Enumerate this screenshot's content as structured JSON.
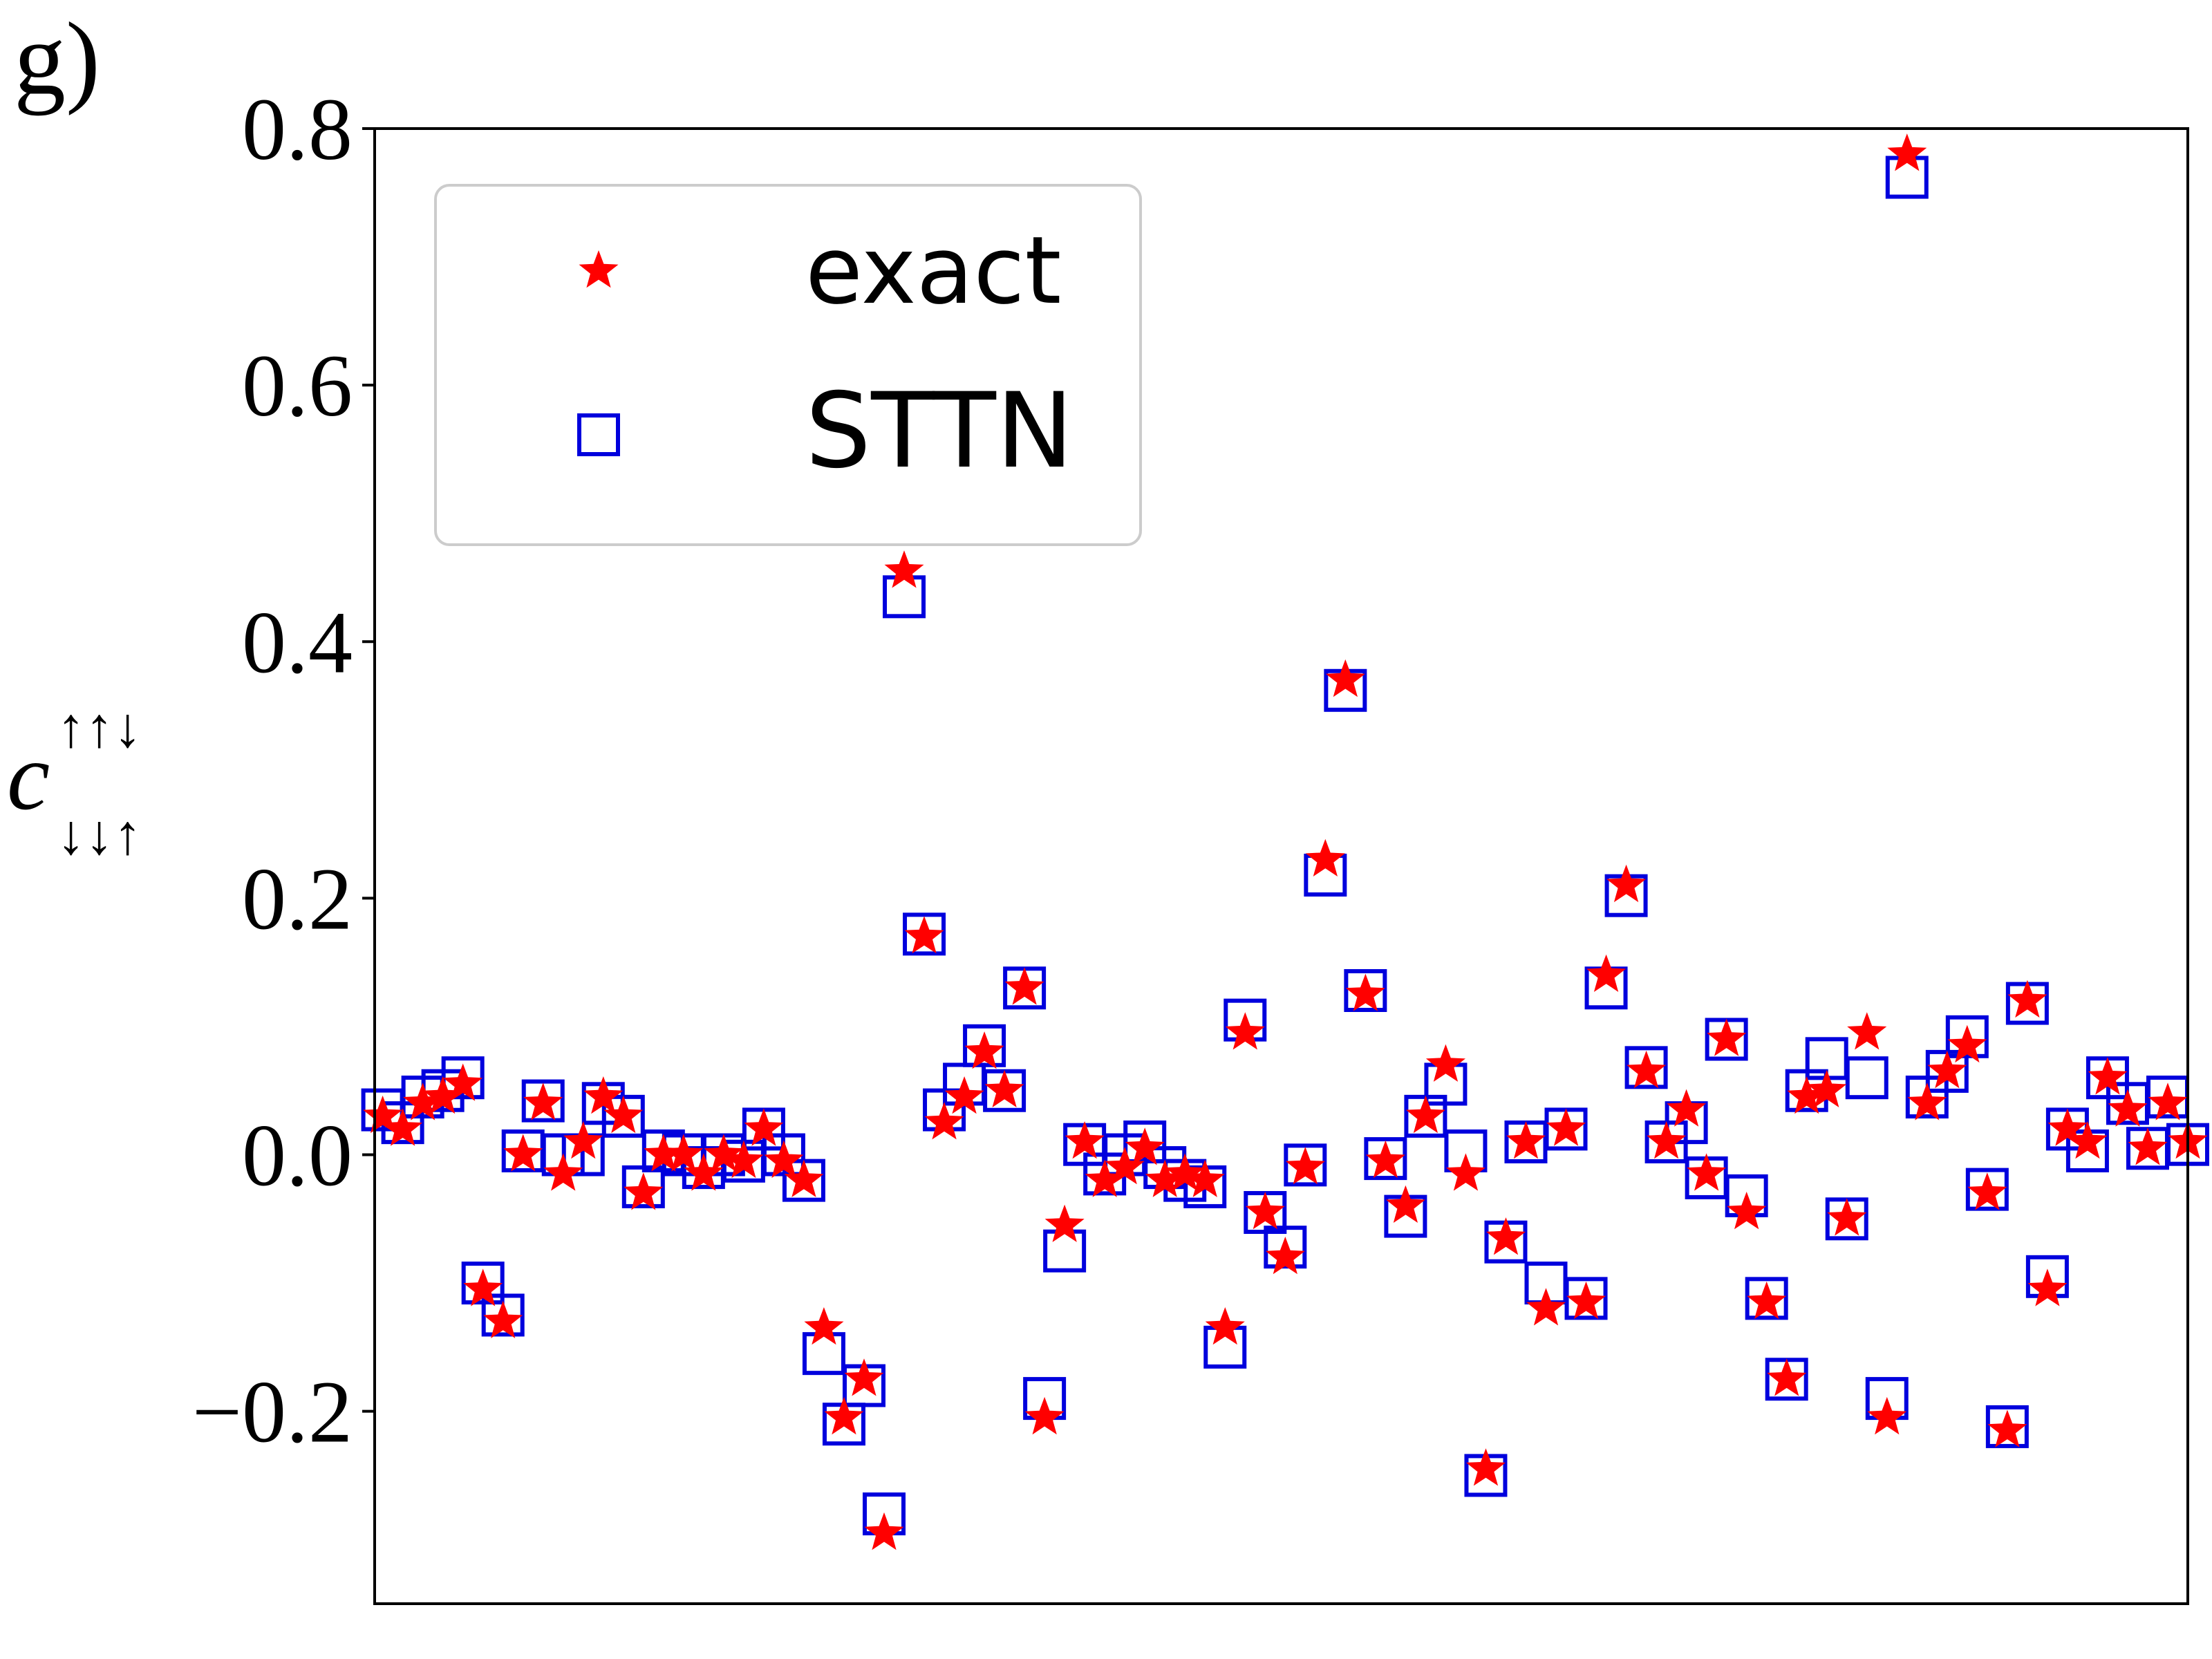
{
  "chart_data": {
    "type": "scatter",
    "panel_label": "g)",
    "ylabel": {
      "base": "c",
      "sup": "↑↑↓",
      "sub": "↓↓↑"
    },
    "ylim": [
      -0.35,
      0.8
    ],
    "yticks": [
      {
        "value": -0.2,
        "label": "−0.2"
      },
      {
        "value": 0,
        "label": "0.0"
      },
      0.2,
      0.4,
      0.6,
      0.8
    ],
    "legend": "upper left",
    "series": [
      {
        "name": "exact",
        "color": "#ff0000",
        "marker": "star",
        "values": [
          0.03,
          0.02,
          0.04,
          0.045,
          0.055,
          -0.105,
          -0.13,
          0.0,
          0.04,
          -0.015,
          0.01,
          0.045,
          0.03,
          -0.03,
          0.0,
          0.0,
          -0.015,
          0.0,
          -0.005,
          0.02,
          -0.005,
          -0.02,
          -0.135,
          -0.205,
          -0.175,
          -0.295,
          0.455,
          0.17,
          0.025,
          0.045,
          0.08,
          0.05,
          0.13,
          -0.205,
          -0.055,
          0.01,
          -0.02,
          -0.01,
          0.005,
          -0.02,
          -0.015,
          -0.02,
          -0.135,
          0.095,
          -0.045,
          -0.08,
          -0.01,
          0.23,
          0.37,
          0.125,
          -0.005,
          -0.04,
          0.03,
          0.07,
          -0.015,
          -0.245,
          -0.065,
          0.01,
          -0.12,
          0.02,
          -0.115,
          0.14,
          0.21,
          0.065,
          0.01,
          0.035,
          -0.015,
          0.09,
          -0.045,
          -0.115,
          -0.175,
          0.045,
          0.05,
          -0.05,
          0.095,
          -0.205,
          0.78,
          0.04,
          0.065,
          0.085,
          -0.03,
          -0.215,
          0.12,
          -0.105,
          0.02,
          0.01,
          0.06,
          0.035,
          0.005,
          0.04,
          0.01
        ]
      },
      {
        "name": "STTN",
        "color": "#0000dd",
        "marker": "square",
        "values": [
          0.035,
          0.025,
          0.045,
          0.05,
          0.06,
          -0.1,
          -0.125,
          0.003,
          0.042,
          0.0,
          0.0,
          0.04,
          0.03,
          -0.025,
          0.003,
          0.0,
          -0.01,
          0.0,
          -0.005,
          0.02,
          0.0,
          -0.02,
          -0.155,
          -0.21,
          -0.18,
          -0.28,
          0.435,
          0.172,
          0.035,
          0.055,
          0.085,
          0.05,
          0.13,
          -0.19,
          -0.075,
          0.008,
          -0.015,
          0.0,
          0.01,
          -0.01,
          -0.02,
          -0.025,
          -0.15,
          0.105,
          -0.045,
          -0.072,
          -0.008,
          0.218,
          0.362,
          0.128,
          -0.003,
          -0.048,
          0.03,
          0.055,
          0.003,
          -0.25,
          -0.068,
          0.01,
          -0.1,
          0.02,
          -0.112,
          0.13,
          0.202,
          0.068,
          0.01,
          0.025,
          -0.018,
          0.09,
          -0.032,
          -0.112,
          -0.175,
          0.05,
          0.075,
          -0.05,
          0.06,
          -0.19,
          0.762,
          0.045,
          0.065,
          0.092,
          -0.027,
          -0.212,
          0.118,
          -0.095,
          0.02,
          0.003,
          0.06,
          0.04,
          0.005,
          0.045,
          0.008
        ]
      }
    ]
  }
}
